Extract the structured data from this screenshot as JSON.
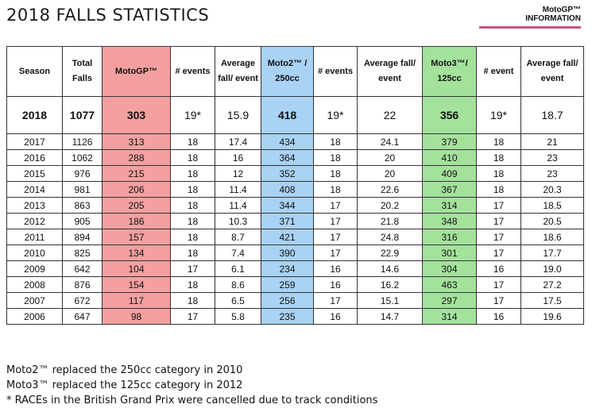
{
  "title": "2018 FALLS STATISTICS",
  "brand": {
    "line1": "MotoGP™",
    "line2": "INFORMATION",
    "accent": "#c4567a"
  },
  "colors": {
    "motogp": "#f4a0a0",
    "moto2": "#a9d2f5",
    "moto3": "#a4e29c"
  },
  "headers": {
    "season": "Season",
    "total_falls": "Total Falls",
    "motogp": "MotoGP™",
    "motogp_events": "# events",
    "motogp_avg": "Average fall/ event",
    "moto2": "Moto2™ / 250cc",
    "moto2_events": "# events",
    "moto2_avg": "Average fall/ event",
    "moto3": "Moto3™/ 125cc",
    "moto3_events": "# event",
    "moto3_avg": "Average fall/ event"
  },
  "highlight": [
    "2018",
    "1077",
    "303",
    "19*",
    "15.9",
    "418",
    "19*",
    "22",
    "356",
    "19*",
    "18.7"
  ],
  "rows": [
    [
      "2017",
      "1126",
      "313",
      "18",
      "17.4",
      "434",
      "18",
      "24.1",
      "379",
      "18",
      "21"
    ],
    [
      "2016",
      "1062",
      "288",
      "18",
      "16",
      "364",
      "18",
      "20",
      "410",
      "18",
      "23"
    ],
    [
      "2015",
      "976",
      "215",
      "18",
      "12",
      "352",
      "18",
      "20",
      "409",
      "18",
      "23"
    ],
    [
      "2014",
      "981",
      "206",
      "18",
      "11.4",
      "408",
      "18",
      "22.6",
      "367",
      "18",
      "20.3"
    ],
    [
      "2013",
      "863",
      "205",
      "18",
      "11.4",
      "344",
      "17",
      "20.2",
      "314",
      "17",
      "18.5"
    ],
    [
      "2012",
      "905",
      "186",
      "18",
      "10.3",
      "371",
      "17",
      "21.8",
      "348",
      "17",
      "20.5"
    ],
    [
      "2011",
      "894",
      "157",
      "18",
      "8.7",
      "421",
      "17",
      "24.8",
      "316",
      "17",
      "18.6"
    ],
    [
      "2010",
      "825",
      "134",
      "18",
      "7.4",
      "390",
      "17",
      "22.9",
      "301",
      "17",
      "17.7"
    ],
    [
      "2009",
      "642",
      "104",
      "17",
      "6.1",
      "234",
      "16",
      "14.6",
      "304",
      "16",
      "19.0"
    ],
    [
      "2008",
      "876",
      "154",
      "18",
      "8.6",
      "259",
      "16",
      "16.2",
      "463",
      "17",
      "27.2"
    ],
    [
      "2007",
      "672",
      "117",
      "18",
      "6.5",
      "256",
      "17",
      "15.1",
      "297",
      "17",
      "17.5"
    ],
    [
      "2006",
      "647",
      "98",
      "17",
      "5.8",
      "235",
      "16",
      "14.7",
      "314",
      "16",
      "19.6"
    ]
  ],
  "notes": [
    "Moto2™ replaced the 250cc category in 2010",
    "Moto3™ replaced the 125cc category in 2012",
    "* RACEs in the British Grand Prix were cancelled due to track conditions"
  ]
}
